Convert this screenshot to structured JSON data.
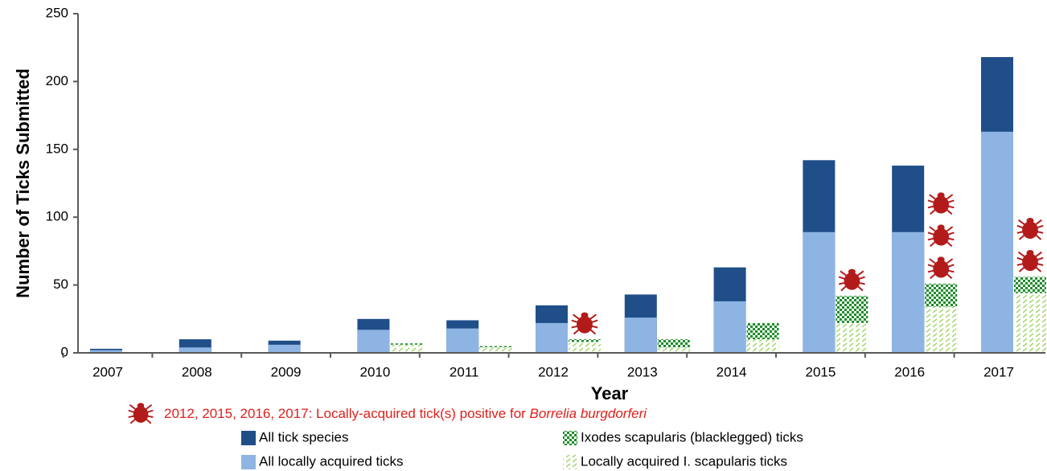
{
  "chart_data": {
    "type": "bar",
    "ylabel": "Number of Ticks Submitted",
    "xlabel": "Year",
    "categories": [
      "2007",
      "2008",
      "2009",
      "2010",
      "2011",
      "2012",
      "2013",
      "2014",
      "2015",
      "2016",
      "2017"
    ],
    "series": [
      {
        "name": "All tick species",
        "color": "#1f4e89",
        "fill_style": "solid",
        "values": [
          3,
          10,
          9,
          25,
          24,
          35,
          43,
          63,
          142,
          138,
          218
        ]
      },
      {
        "name": "All locally acquired ticks",
        "color": "#8eb4e3",
        "fill_style": "solid",
        "values": [
          2,
          4,
          6,
          17,
          18,
          22,
          26,
          38,
          89,
          89,
          163
        ]
      },
      {
        "name": "Ixodes scapularis (blacklegged) ticks",
        "color": "#1e8c2a",
        "fill_style": "checker",
        "values": [
          0,
          0,
          0,
          7,
          5,
          10,
          10,
          22,
          42,
          51,
          56
        ]
      },
      {
        "name": "Locally acquired I. scapularis ticks",
        "color": "#92d050",
        "fill_style": "hatch",
        "values": [
          0,
          0,
          0,
          6,
          4,
          8,
          4,
          10,
          22,
          34,
          44
        ]
      }
    ],
    "positive_icons": [
      0,
      0,
      0,
      0,
      0,
      1,
      0,
      0,
      1,
      3,
      2
    ],
    "icon_color": "#b31b1b",
    "annotation": {
      "text": "2012, 2015, 2016, 2017: Locally-acquired tick(s) positive for ",
      "italic": "Borrelia burgdorferi"
    },
    "ylim": [
      0,
      250
    ],
    "yticks": [
      0,
      50,
      100,
      150,
      200,
      250
    ]
  }
}
